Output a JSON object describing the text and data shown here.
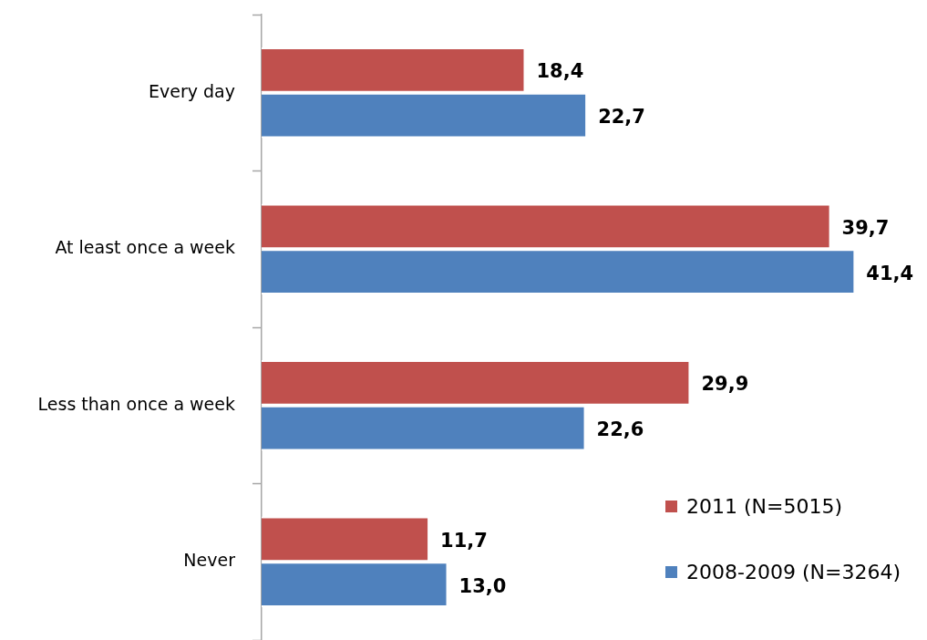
{
  "chart_data": {
    "type": "bar",
    "orientation": "horizontal",
    "categories": [
      "Every day",
      "At least once a week",
      "Less than once a week",
      "Never"
    ],
    "series": [
      {
        "name": "2011 (N=5015)",
        "color": "#c0504d",
        "values": [
          18.4,
          39.7,
          29.9,
          11.7
        ],
        "value_labels": [
          "18,4",
          "39,7",
          "29,9",
          "11,7"
        ]
      },
      {
        "name": "2008-2009 (N=3264)",
        "color": "#4f81bd",
        "values": [
          22.7,
          41.4,
          22.6,
          13.0
        ],
        "value_labels": [
          "22,7",
          "41,4",
          "22,6",
          "13,0"
        ]
      }
    ],
    "legend": "bottom right",
    "tick_labels": "y",
    "grid": false
  }
}
